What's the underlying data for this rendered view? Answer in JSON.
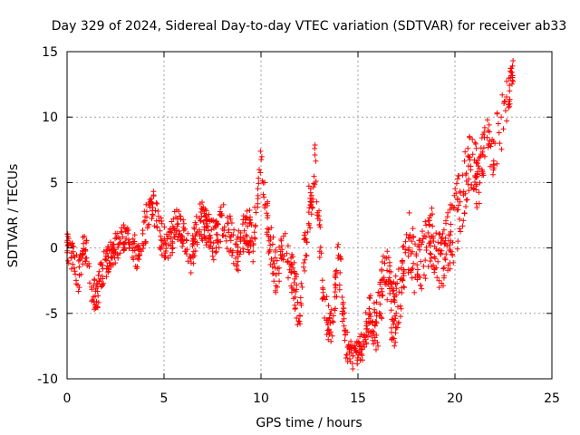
{
  "chart_data": {
    "type": "scatter",
    "title": "Day 329 of 2024, Sidereal Day-to-day VTEC variation (SDTVAR) for receiver ab33",
    "xlabel": "GPS time / hours",
    "ylabel": "SDTVAR / TECUs",
    "xlim": [
      0,
      25
    ],
    "ylim": [
      -10,
      15
    ],
    "xticks": [
      0,
      5,
      10,
      15,
      20,
      25
    ],
    "yticks": [
      -10,
      -5,
      0,
      5,
      10,
      15
    ],
    "grid": true,
    "marker": "+",
    "color": "#ff0000",
    "series": [
      {
        "name": "SDTVAR",
        "trend_x": [
          0.0,
          0.3,
          0.6,
          0.9,
          1.2,
          1.5,
          1.8,
          2.2,
          2.6,
          3.0,
          3.3,
          3.6,
          4.0,
          4.4,
          4.8,
          5.2,
          5.6,
          6.0,
          6.4,
          6.8,
          7.2,
          7.6,
          8.0,
          8.4,
          8.8,
          9.2,
          9.6,
          10.0,
          10.4,
          10.8,
          11.2,
          11.6,
          12.0,
          12.4,
          12.8,
          13.2,
          13.6,
          14.0,
          14.4,
          14.8,
          15.2,
          15.6,
          16.0,
          16.4,
          16.8,
          17.2,
          17.6,
          18.0,
          18.4,
          18.8,
          19.2,
          19.6,
          20.0,
          20.4,
          20.8,
          21.2,
          21.6,
          22.0,
          22.4,
          22.8,
          23.0
        ],
        "trend_y": [
          0.5,
          -1.0,
          -2.0,
          0.5,
          -2.5,
          -4.0,
          -2.0,
          -0.5,
          0.0,
          1.0,
          0.5,
          -0.5,
          1.5,
          3.5,
          1.0,
          -0.5,
          2.0,
          1.0,
          -1.0,
          2.5,
          1.5,
          0.5,
          2.0,
          1.0,
          -0.5,
          2.0,
          0.5,
          7.0,
          1.0,
          -2.0,
          0.5,
          -2.0,
          -5.0,
          2.0,
          6.5,
          -3.5,
          -6.5,
          -0.5,
          -7.5,
          -8.5,
          -7.5,
          -5.0,
          -6.0,
          -1.0,
          -5.5,
          -3.0,
          0.5,
          -2.0,
          -0.5,
          1.0,
          -1.5,
          0.5,
          2.0,
          4.0,
          6.5,
          5.0,
          8.0,
          7.5,
          9.5,
          12.0,
          13.5
        ],
        "spread": [
          2.5,
          3.0,
          3.0,
          2.5,
          3.0,
          2.0,
          3.0,
          2.5,
          2.5,
          2.0,
          2.0,
          2.5,
          3.0,
          2.5,
          3.0,
          3.0,
          2.5,
          2.5,
          2.5,
          3.0,
          3.0,
          3.0,
          3.0,
          3.0,
          3.0,
          3.5,
          3.5,
          2.5,
          3.5,
          3.5,
          3.0,
          3.5,
          3.5,
          4.0,
          3.5,
          4.0,
          3.0,
          4.0,
          2.5,
          2.0,
          2.5,
          3.0,
          4.5,
          4.5,
          5.5,
          4.5,
          5.0,
          5.0,
          4.5,
          5.0,
          5.0,
          5.0,
          6.0,
          5.5,
          5.0,
          5.0,
          4.0,
          4.0,
          4.0,
          3.0,
          2.0
        ]
      }
    ]
  }
}
